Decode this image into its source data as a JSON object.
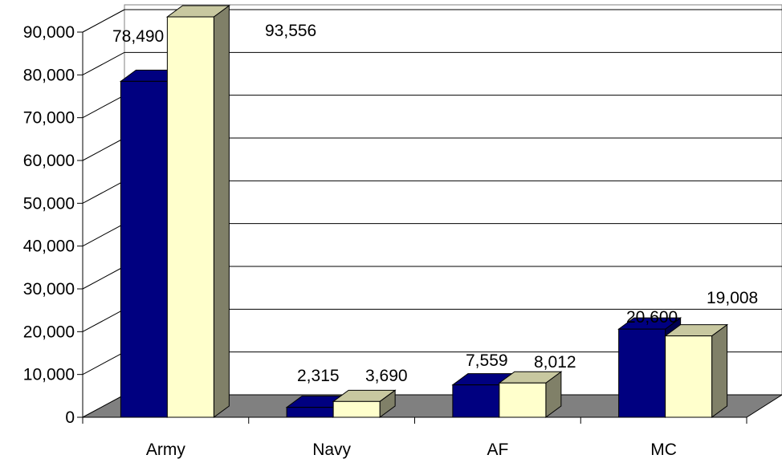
{
  "chart_data": {
    "type": "bar",
    "three_d": true,
    "categories": [
      "Army",
      "Navy",
      "AF",
      "MC"
    ],
    "series": [
      {
        "values": [
          78490,
          2315,
          7559,
          20600
        ],
        "color": "#000080"
      },
      {
        "values": [
          93556,
          3690,
          8012,
          19008
        ],
        "color": "#FFFFCC"
      }
    ],
    "data_labels": [
      [
        "78,490",
        "2,315",
        "7,559",
        "20,600"
      ],
      [
        "93,556",
        "3,690",
        "8,012",
        "19,008"
      ]
    ],
    "y_ticks": [
      0,
      10000,
      20000,
      30000,
      40000,
      50000,
      60000,
      70000,
      80000,
      90000
    ],
    "y_tick_labels": [
      "0",
      "10,000",
      "20,000",
      "30,000",
      "40,000",
      "50,000",
      "60,000",
      "70,000",
      "80,000",
      "90,000"
    ],
    "ylim": [
      0,
      90000
    ],
    "grid": true,
    "legend": "none",
    "title": "",
    "xlabel": "",
    "ylabel": "",
    "colors": {
      "floor": "#808080",
      "walls": "#ffffff",
      "grid": "#000000",
      "navy_side": "#000050",
      "cream_top": "#C8C8A0",
      "cream_side": "#808068"
    }
  }
}
